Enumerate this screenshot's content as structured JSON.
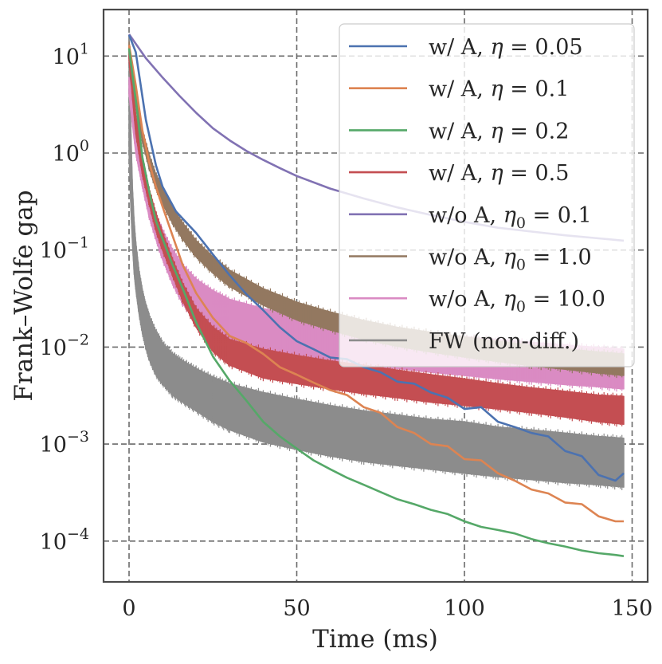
{
  "chart_data": {
    "type": "line",
    "title": "",
    "xlabel": "Time (ms)",
    "ylabel": "Frank–Wolfe gap",
    "xlim": [
      -7.5,
      155
    ],
    "ylim_log10": [
      -4.55,
      1.5
    ],
    "yscale": "log",
    "grid": true,
    "legend_position": "top-right",
    "xticks": [
      {
        "value": 0,
        "label": "0"
      },
      {
        "value": 50,
        "label": "50"
      },
      {
        "value": 100,
        "label": "100"
      },
      {
        "value": 150,
        "label": "150"
      }
    ],
    "yticks": [
      {
        "exp": 1,
        "base": "10",
        "sup": "1"
      },
      {
        "exp": 0,
        "base": "10",
        "sup": "0"
      },
      {
        "exp": -1,
        "base": "10",
        "sup": "−1"
      },
      {
        "exp": -2,
        "base": "10",
        "sup": "−2"
      },
      {
        "exp": -3,
        "base": "10",
        "sup": "−3"
      },
      {
        "exp": -4,
        "base": "10",
        "sup": "−4"
      }
    ],
    "series": [
      {
        "name": "w/ A, η = 0.05",
        "label_main": "w/ A, ",
        "label_sym": "η",
        "label_sub": "",
        "label_val": " = 0.05",
        "color": "#4c72b0",
        "kind": "line",
        "x": [
          0,
          2,
          5,
          8,
          10,
          14,
          20,
          25,
          30,
          35,
          40,
          45,
          50,
          55,
          60,
          65,
          70,
          75,
          80,
          85,
          90,
          95,
          100,
          105,
          110,
          115,
          120,
          125,
          130,
          135,
          140,
          145,
          147.5
        ],
        "y": [
          16.5,
          11,
          2.2,
          0.75,
          0.45,
          0.25,
          0.15,
          0.09,
          0.055,
          0.035,
          0.024,
          0.016,
          0.0115,
          0.0095,
          0.0078,
          0.0075,
          0.0062,
          0.0055,
          0.0044,
          0.0042,
          0.0034,
          0.003,
          0.0023,
          0.0024,
          0.0017,
          0.0015,
          0.0013,
          0.0012,
          0.00085,
          0.00075,
          0.00048,
          0.00042,
          0.0005
        ]
      },
      {
        "name": "w/ A, η = 0.1",
        "label_main": "w/ A, ",
        "label_sym": "η",
        "label_sub": "",
        "label_val": " = 0.1",
        "color": "#dd8452",
        "kind": "line",
        "x": [
          0,
          2,
          4,
          6,
          8,
          10,
          13,
          16,
          20,
          25,
          30,
          35,
          40,
          45,
          50,
          55,
          60,
          65,
          70,
          75,
          80,
          85,
          90,
          95,
          100,
          105,
          110,
          115,
          120,
          125,
          130,
          135,
          140,
          145,
          147.5
        ],
        "y": [
          13,
          5,
          1.7,
          0.8,
          0.45,
          0.28,
          0.14,
          0.07,
          0.036,
          0.02,
          0.013,
          0.011,
          0.0085,
          0.0062,
          0.0052,
          0.0043,
          0.0036,
          0.0032,
          0.0024,
          0.0021,
          0.0015,
          0.0013,
          0.001,
          0.00095,
          0.0007,
          0.00068,
          0.0005,
          0.00042,
          0.00034,
          0.00031,
          0.00025,
          0.00024,
          0.00018,
          0.00016,
          0.00016
        ]
      },
      {
        "name": "w/ A, η = 0.2",
        "label_main": "w/ A, ",
        "label_sym": "η",
        "label_sub": "",
        "label_val": " = 0.2",
        "color": "#55a868",
        "kind": "line",
        "x": [
          0,
          2,
          4,
          6,
          8,
          10,
          13,
          16,
          20,
          25,
          30,
          35,
          40,
          45,
          50,
          55,
          60,
          65,
          70,
          75,
          80,
          85,
          90,
          95,
          100,
          105,
          110,
          115,
          120,
          125,
          130,
          135,
          140,
          145,
          147.5
        ],
        "y": [
          12,
          3.5,
          0.9,
          0.4,
          0.2,
          0.13,
          0.07,
          0.04,
          0.018,
          0.008,
          0.0045,
          0.0028,
          0.0017,
          0.0012,
          0.0009,
          0.00068,
          0.00055,
          0.00045,
          0.00038,
          0.00032,
          0.00027,
          0.00024,
          0.00021,
          0.00019,
          0.00016,
          0.00014,
          0.00013,
          0.00012,
          0.000105,
          9.5e-05,
          8.8e-05,
          8e-05,
          7.5e-05,
          7.2e-05,
          7e-05
        ]
      },
      {
        "name": "w/ A, η = 0.5",
        "label_main": "w/ A, ",
        "label_sym": "η",
        "label_sub": "",
        "label_val": " = 0.5",
        "color": "#c44e52",
        "kind": "band",
        "x": [
          0,
          2,
          4,
          6,
          8,
          10,
          13,
          16,
          20,
          25,
          30,
          40,
          50,
          60,
          70,
          80,
          90,
          100,
          110,
          120,
          130,
          140,
          147.5
        ],
        "lo": [
          9,
          1.6,
          0.6,
          0.3,
          0.16,
          0.1,
          0.055,
          0.03,
          0.016,
          0.009,
          0.0065,
          0.0048,
          0.0042,
          0.0037,
          0.0033,
          0.003,
          0.0027,
          0.0025,
          0.0023,
          0.0021,
          0.0019,
          0.0017,
          0.0016
        ],
        "hi": [
          12,
          2.5,
          0.9,
          0.42,
          0.24,
          0.15,
          0.08,
          0.045,
          0.025,
          0.016,
          0.012,
          0.0095,
          0.0082,
          0.0072,
          0.0065,
          0.0058,
          0.0052,
          0.0047,
          0.0042,
          0.0038,
          0.0035,
          0.0032,
          0.0031
        ]
      },
      {
        "name": "w/o A, η0 = 0.1",
        "label_main": "w/o A, ",
        "label_sym": "η",
        "label_sub": "0",
        "label_val": " = 0.1",
        "color": "#8172b3",
        "kind": "line",
        "x": [
          0,
          5,
          10,
          15,
          20,
          25,
          30,
          35,
          40,
          45,
          50,
          60,
          70,
          80,
          90,
          100,
          110,
          120,
          130,
          140,
          147.5
        ],
        "y": [
          16.8,
          9.5,
          6.0,
          3.9,
          2.6,
          1.8,
          1.35,
          1.05,
          0.85,
          0.7,
          0.58,
          0.43,
          0.34,
          0.275,
          0.23,
          0.195,
          0.17,
          0.155,
          0.142,
          0.132,
          0.125
        ]
      },
      {
        "name": "w/o A, η0 = 1.0",
        "label_main": "w/o A, ",
        "label_sym": "η",
        "label_sub": "0",
        "label_val": " = 1.0",
        "color": "#937860",
        "kind": "band",
        "x": [
          0,
          2,
          4,
          6,
          8,
          10,
          13,
          16,
          20,
          25,
          30,
          40,
          50,
          60,
          70,
          80,
          90,
          100,
          110,
          120,
          130,
          140,
          147.5
        ],
        "lo": [
          11,
          3.2,
          1.3,
          0.7,
          0.43,
          0.3,
          0.19,
          0.13,
          0.085,
          0.058,
          0.042,
          0.027,
          0.019,
          0.015,
          0.012,
          0.0102,
          0.0089,
          0.0079,
          0.0071,
          0.0064,
          0.0059,
          0.0054,
          0.0051
        ],
        "hi": [
          14,
          4.2,
          1.7,
          0.95,
          0.6,
          0.43,
          0.27,
          0.19,
          0.125,
          0.085,
          0.062,
          0.04,
          0.029,
          0.023,
          0.0188,
          0.016,
          0.0142,
          0.0127,
          0.0115,
          0.0104,
          0.0096,
          0.0089,
          0.0085
        ]
      },
      {
        "name": "w/o A, η0 = 10.0",
        "label_main": "w/o A, ",
        "label_sym": "η",
        "label_sub": "0",
        "label_val": " = 10.0",
        "color": "#da8bc3",
        "kind": "band",
        "x": [
          0,
          2,
          4,
          6,
          8,
          10,
          13,
          16,
          20,
          25,
          30,
          40,
          50,
          60,
          70,
          80,
          90,
          100,
          110,
          120,
          130,
          140,
          147.5
        ],
        "lo": [
          4,
          1.0,
          0.45,
          0.22,
          0.13,
          0.08,
          0.045,
          0.028,
          0.018,
          0.013,
          0.011,
          0.009,
          0.008,
          0.0072,
          0.0065,
          0.006,
          0.0055,
          0.0051,
          0.0047,
          0.0044,
          0.0041,
          0.0039,
          0.0037
        ],
        "hi": [
          6,
          1.6,
          0.75,
          0.38,
          0.23,
          0.16,
          0.1,
          0.07,
          0.05,
          0.038,
          0.031,
          0.025,
          0.021,
          0.0185,
          0.0165,
          0.015,
          0.0138,
          0.0128,
          0.012,
          0.0112,
          0.0105,
          0.0099,
          0.0095
        ]
      },
      {
        "name": "FW (non-diff.)",
        "label_main": "FW (non-diff.)",
        "label_sym": "",
        "label_sub": "",
        "label_val": "",
        "color": "#8c8c8c",
        "kind": "band",
        "x": [
          0,
          0.5,
          1,
          1.5,
          2,
          3,
          4,
          5,
          6,
          8,
          10,
          13,
          16,
          20,
          25,
          30,
          40,
          50,
          60,
          70,
          80,
          90,
          100,
          110,
          120,
          130,
          140,
          147.5
        ],
        "lo": [
          1.0,
          0.3,
          0.12,
          0.06,
          0.04,
          0.022,
          0.014,
          0.01,
          0.0075,
          0.0052,
          0.0042,
          0.0032,
          0.0027,
          0.0022,
          0.0017,
          0.0014,
          0.00105,
          0.00088,
          0.00075,
          0.00066,
          0.0006,
          0.00055,
          0.0005,
          0.00046,
          0.00043,
          0.0004,
          0.00038,
          0.00036
        ],
        "hi": [
          16,
          2.0,
          0.45,
          0.2,
          0.12,
          0.06,
          0.038,
          0.027,
          0.021,
          0.0145,
          0.011,
          0.0085,
          0.0072,
          0.006,
          0.0049,
          0.0042,
          0.0034,
          0.0029,
          0.0025,
          0.0022,
          0.002,
          0.0018,
          0.0017,
          0.0015,
          0.0014,
          0.0013,
          0.0012,
          0.00115
        ]
      }
    ]
  }
}
